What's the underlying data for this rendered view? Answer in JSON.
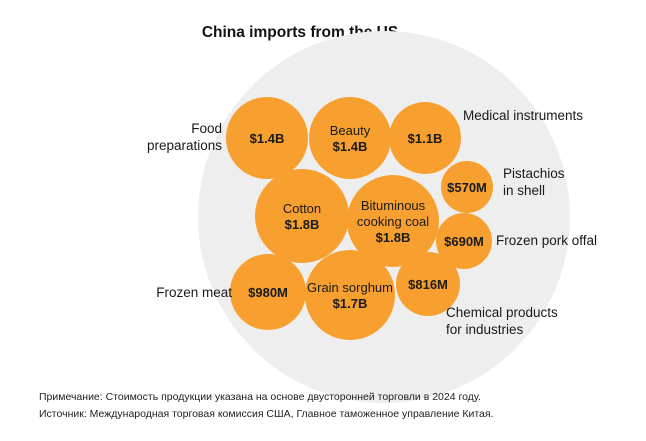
{
  "chart_data": {
    "type": "bubble",
    "title": "China imports from the US",
    "colors": {
      "bubble": "#F7A02F",
      "background_circle": "#EEEEEE"
    },
    "items": [
      {
        "label": "Food preparations",
        "value_text": "$1.4B",
        "value_usd": 1400000000
      },
      {
        "label": "Beauty",
        "value_text": "$1.4B",
        "value_usd": 1400000000
      },
      {
        "label": "Medical instruments",
        "value_text": "$1.1B",
        "value_usd": 1100000000
      },
      {
        "label": "Pistachios in shell",
        "value_text": "$570M",
        "value_usd": 570000000
      },
      {
        "label": "Cotton",
        "value_text": "$1.8B",
        "value_usd": 1800000000
      },
      {
        "label": "Bituminous cooking coal",
        "value_text": "$1.8B",
        "value_usd": 1800000000
      },
      {
        "label": "Frozen pork offal",
        "value_text": "$690M",
        "value_usd": 690000000
      },
      {
        "label": "Frozen meat",
        "value_text": "$980M",
        "value_usd": 980000000
      },
      {
        "label": "Grain sorghum",
        "value_text": "$1.7B",
        "value_usd": 1700000000
      },
      {
        "label": "Chemical products for industries",
        "value_text": "$816M",
        "value_usd": 816000000
      }
    ]
  },
  "footer": {
    "note": "Примечание: Стоимость продукции указана на основе двусторонней торговли в 2024 году.",
    "source": "Источник: Международная торговая комиссия США, Главное таможенное управление Китая."
  }
}
